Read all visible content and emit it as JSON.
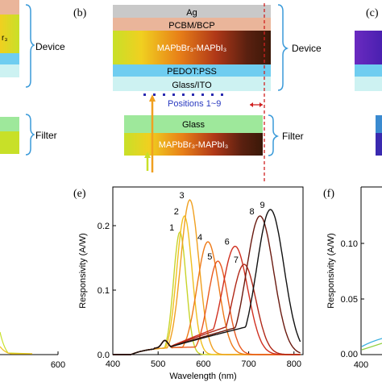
{
  "panels": {
    "b": "(b)",
    "c": "(c)",
    "e": "(e)",
    "f": "(f)"
  },
  "device_stack": {
    "layers": [
      {
        "label": "Ag",
        "color": "#c9c9c9"
      },
      {
        "label": "PCBM/BCP",
        "color": "#eab59a"
      },
      {
        "label": "MAPbBr₃-MAPbI₃",
        "color": "gradient"
      },
      {
        "label": "PEDOT:PSS",
        "color": "#6fcdf0"
      },
      {
        "label": "Glass/ITO",
        "color": "#cdf2f2"
      }
    ],
    "device_label": "Device",
    "positions_label": "Positions 1~9",
    "filter_layers": [
      {
        "label": "Glass",
        "color": "#9ee89b"
      },
      {
        "label": "MAPbBr₃-MAPbI₃",
        "color": "gradient"
      }
    ],
    "filter_label": "Filter"
  },
  "left_fragment": {
    "device_label": "Device",
    "filter_label": "Filter",
    "layer_text": "r₃",
    "x_tick": "600"
  },
  "right_fragment": {
    "ylabel": "Responsivity (A/W)",
    "y_ticks": [
      "0.10",
      "0.05",
      "0.00"
    ],
    "x_tick": "400"
  },
  "chart_data": {
    "type": "line",
    "xlabel": "Wavelength (nm)",
    "ylabel": "Responsivity (A/W)",
    "xlim": [
      400,
      820
    ],
    "ylim": [
      0,
      0.26
    ],
    "x_ticks": [
      "400",
      "500",
      "600",
      "700",
      "800"
    ],
    "y_ticks": [
      "0.0",
      "0.1",
      "0.2"
    ],
    "series": [
      {
        "name": "1",
        "color": "#c8d42a",
        "peak": 548,
        "height": 0.19,
        "width": 14
      },
      {
        "name": "2",
        "color": "#f0c020",
        "peak": 558,
        "height": 0.215,
        "width": 17
      },
      {
        "name": "3",
        "color": "#f0a020",
        "peak": 570,
        "height": 0.24,
        "width": 20
      },
      {
        "name": "4",
        "color": "#ee7a18",
        "peak": 610,
        "height": 0.175,
        "width": 24
      },
      {
        "name": "5",
        "color": "#e85a20",
        "peak": 632,
        "height": 0.145,
        "width": 22
      },
      {
        "name": "6",
        "color": "#d03020",
        "peak": 670,
        "height": 0.168,
        "width": 28
      },
      {
        "name": "7",
        "color": "#b02818",
        "peak": 690,
        "height": 0.14,
        "width": 26
      },
      {
        "name": "8",
        "color": "#6a1a10",
        "peak": 725,
        "height": 0.215,
        "width": 30
      },
      {
        "name": "9",
        "color": "#111111",
        "peak": 748,
        "height": 0.225,
        "width": 30
      }
    ]
  }
}
